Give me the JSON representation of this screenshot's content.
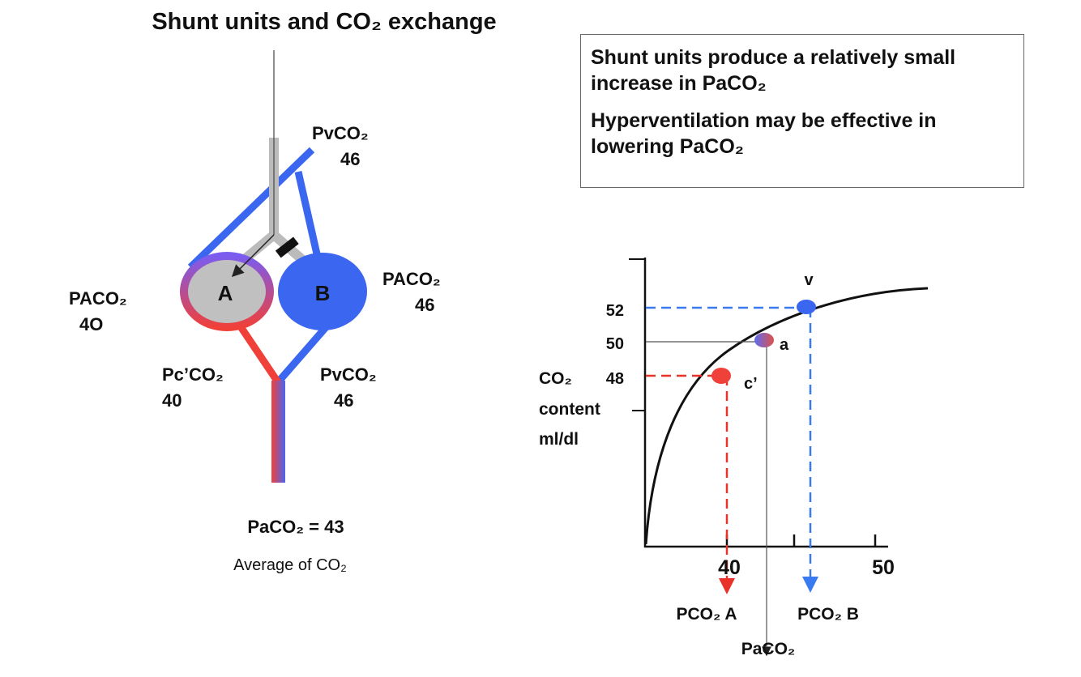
{
  "title": "Shunt units and CO₂ exchange",
  "note": {
    "lines": [
      "Shunt units produce  a relatively small increase in PaCO₂",
      "Hyperventilation may be effective in lowering PaCO₂"
    ]
  },
  "left_diagram": {
    "venous_top": {
      "name": "PvCO₂",
      "value": "46"
    },
    "unit_a": "A",
    "unit_b": "B",
    "alveolar_a": {
      "name": "PACO₂",
      "value": "4O"
    },
    "alveolar_b": {
      "name": "PACO₂",
      "value": "46"
    },
    "capillary_a": {
      "name": "Pc’CO₂",
      "value": "40"
    },
    "venous_b": {
      "name": "PvCO₂",
      "value": "46"
    },
    "result": "PaCO₂ = 43",
    "caption": "Average of CO₂"
  },
  "graph": {
    "y_label": [
      "CO₂",
      "content",
      "ml/dl"
    ],
    "y_ticks": [
      "52",
      "50",
      "48"
    ],
    "x_ticks": [
      "40",
      "50"
    ],
    "points": {
      "v": "v",
      "a": "a",
      "c": "c’"
    },
    "arrows": {
      "a": "PCO₂ A",
      "b": "PCO₂ B",
      "arterial": "PaCO₂"
    }
  }
}
